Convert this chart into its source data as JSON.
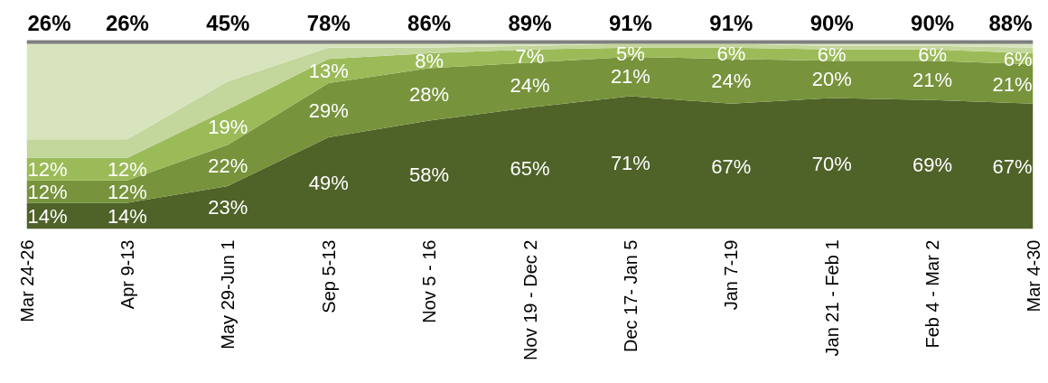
{
  "chart_data": {
    "type": "area",
    "stacked": true,
    "categories": [
      "Mar 24-26",
      "Apr 9-13",
      "May 29-Jun 1",
      "Sep 5-13",
      "Nov 5 - 16",
      "Nov 19 - Dec 2",
      "Dec 17- Jan 5",
      "Jan 7-19",
      "Jan 21 - Feb 1",
      "Feb 4 - Mar 2",
      "Mar 4-30"
    ],
    "ylim": [
      0,
      100
    ],
    "tick_labels": "x",
    "series": [
      {
        "color": "#4f6228",
        "values": [
          14,
          14,
          23,
          49,
          58,
          65,
          71,
          67,
          70,
          69,
          67
        ],
        "value_labels": [
          "14%",
          "14%",
          "23%",
          "49%",
          "58%",
          "65%",
          "71%",
          "67%",
          "70%",
          "69%",
          "67%"
        ]
      },
      {
        "color": "#77933c",
        "values": [
          12,
          12,
          22,
          29,
          28,
          24,
          21,
          24,
          20,
          21,
          21
        ],
        "value_labels": [
          "12%",
          "12%",
          "22%",
          "29%",
          "28%",
          "24%",
          "21%",
          "24%",
          "20%",
          "21%",
          "21%"
        ]
      },
      {
        "color": "#9bbb59",
        "values": [
          12,
          12,
          19,
          13,
          8,
          7,
          5,
          6,
          6,
          6,
          6
        ],
        "value_labels": [
          "12%",
          "12%",
          "19%",
          "13%",
          "8%",
          "7%",
          "5%",
          "6%",
          "6%",
          "6%",
          "6%"
        ]
      },
      {
        "color": "#c3d69b",
        "values": [
          10,
          10,
          15,
          6,
          3,
          2,
          2,
          2,
          2,
          2,
          3
        ]
      },
      {
        "color": "#d7e4bd",
        "values": [
          52,
          52,
          21,
          3,
          3,
          2,
          1,
          1,
          2,
          2,
          3
        ]
      }
    ],
    "annotations": [
      "26%",
      "26%",
      "45%",
      "78%",
      "86%",
      "89%",
      "91%",
      "91%",
      "90%",
      "90%",
      "88%"
    ],
    "ref_lines": [
      {
        "axis": "y",
        "value": 100,
        "color": "#7f7f7f"
      }
    ]
  }
}
